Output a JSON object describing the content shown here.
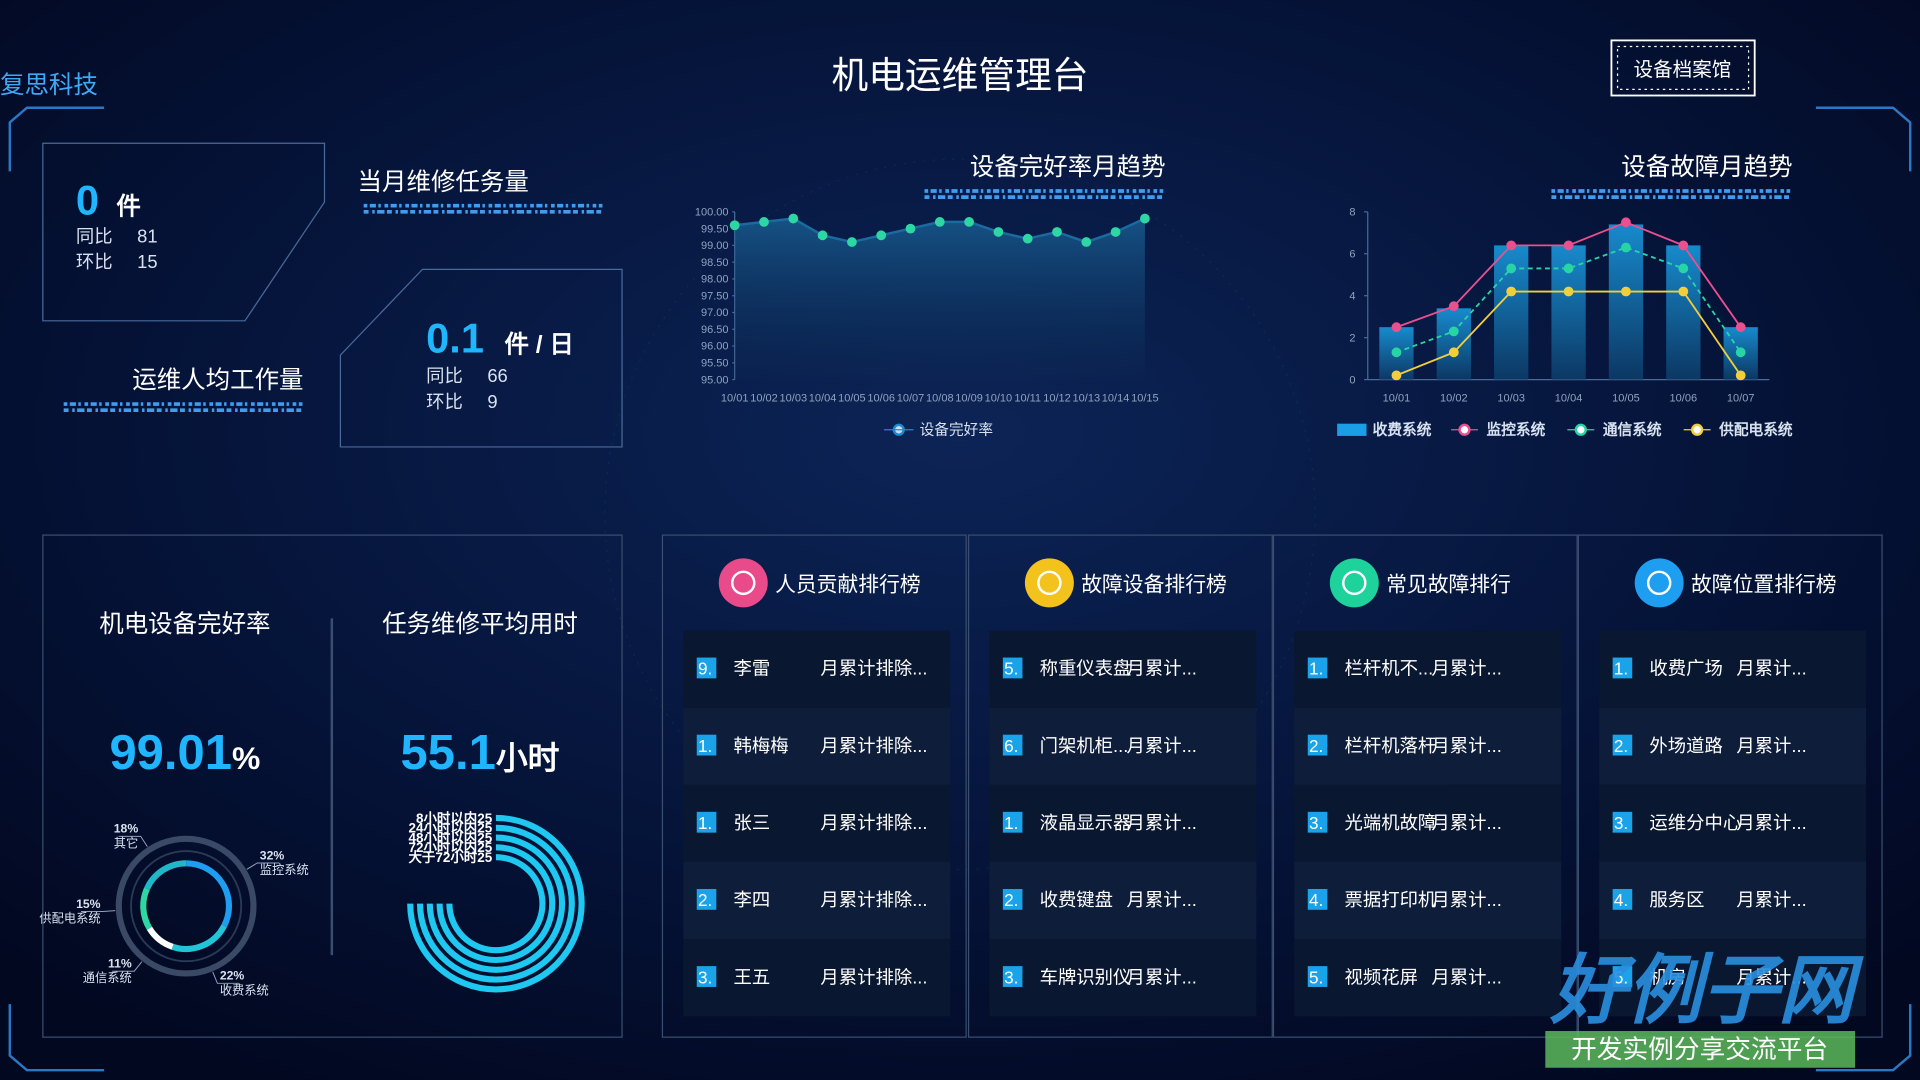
{
  "brand": "复思科技",
  "title": "机电运维管理台",
  "button": "设备档案馆",
  "stats": [
    {
      "value": 0,
      "unit": "件",
      "yoy_label": "同比",
      "yoy": 81,
      "mom_label": "环比",
      "mom": 15,
      "caption": "当月维修任务量"
    },
    {
      "value": 0.1,
      "unit": "件 / 日",
      "yoy_label": "同比",
      "yoy": 66,
      "mom_label": "环比",
      "mom": 9,
      "caption": "运维人均工作量"
    }
  ],
  "chart_data": [
    {
      "type": "line",
      "title": "设备完好率月趋势",
      "categories": [
        "10/01",
        "10/02",
        "10/03",
        "10/04",
        "10/05",
        "10/06",
        "10/07",
        "10/08",
        "10/09",
        "10/10",
        "10/11",
        "10/12",
        "10/13",
        "10/14",
        "10/15"
      ],
      "series": [
        {
          "name": "设备完好率",
          "color": "#2ed6a3",
          "values": [
            99.6,
            99.7,
            99.8,
            99.3,
            99.1,
            99.3,
            99.5,
            99.7,
            99.7,
            99.4,
            99.2,
            99.4,
            99.1,
            99.4,
            99.8
          ]
        }
      ],
      "ylim": [
        95,
        100
      ],
      "yticks": [
        {
          "value": 95,
          "label": "95.00"
        },
        {
          "value": 95.5,
          "label": "95.50"
        },
        {
          "value": 96,
          "label": "96.00"
        },
        {
          "value": 96.5,
          "label": "96.50"
        },
        {
          "value": 97,
          "label": "97.00"
        },
        {
          "value": 97.5,
          "label": "97.50"
        },
        {
          "value": 98,
          "label": "98.00"
        },
        {
          "value": 98.5,
          "label": "98.50"
        },
        {
          "value": 99,
          "label": "99.00"
        },
        {
          "value": 99.5,
          "label": "99.50"
        },
        {
          "value": 100,
          "label": "100.00"
        }
      ]
    },
    {
      "type": "combo",
      "title": "设备故障月趋势",
      "categories": [
        "10/01",
        "10/02",
        "10/03",
        "10/04",
        "10/05",
        "10/06",
        "10/07"
      ],
      "series": [
        {
          "name": "收费系统",
          "type": "bar",
          "color": "#1a9fe6",
          "values": [
            2.5,
            3.4,
            6.4,
            6.4,
            7.4,
            6.4,
            2.5
          ]
        },
        {
          "name": "监控系统",
          "type": "line",
          "color": "#ea4f8e",
          "values": [
            2.5,
            3.5,
            6.4,
            6.4,
            7.5,
            6.4,
            2.5
          ]
        },
        {
          "name": "通信系统",
          "type": "line",
          "dashed": true,
          "color": "#27d4a6",
          "values": [
            1.3,
            2.3,
            5.3,
            5.3,
            6.3,
            5.3,
            1.3
          ]
        },
        {
          "name": "供配电系统",
          "type": "line",
          "color": "#f2cf3a",
          "values": [
            0.2,
            1.3,
            4.2,
            4.2,
            4.2,
            4.2,
            0.2
          ]
        }
      ],
      "ylim": [
        0,
        8
      ],
      "yticks": [
        0,
        2,
        4,
        6,
        8
      ]
    },
    {
      "type": "pie",
      "categories": [
        "监控系统",
        "收费系统",
        "通信系统",
        "供配电系统",
        "其它"
      ],
      "values": [
        32,
        22,
        11,
        15,
        18
      ],
      "value_labels": [
        "32%",
        "22%",
        "11%",
        "15%",
        "18%"
      ],
      "colors": [
        "#1e9ef0",
        "#23c4d8",
        "#ffffff",
        "#2ed6a3",
        "#1fb8c9"
      ]
    },
    {
      "type": "radial_bar",
      "categories": [
        "8小时以内",
        "24小时以内",
        "48小时以内",
        "72小时以内",
        "大于72小时"
      ],
      "values": [
        25,
        25,
        25,
        25,
        25
      ],
      "color": "#1ec8f0"
    }
  ],
  "kpis": [
    {
      "title": "机电设备完好率",
      "value": 99.01,
      "unit": "%"
    },
    {
      "title": "任务维修平均用时",
      "value": 55.1,
      "unit": "小时"
    }
  ],
  "rankings": [
    {
      "title": "人员贡献排行榜",
      "color": "#e94a8a",
      "rows": [
        {
          "rank": "9.",
          "name": "李雷",
          "desc": "月累计排除..."
        },
        {
          "rank": "1.",
          "name": "韩梅梅",
          "desc": "月累计排除..."
        },
        {
          "rank": "1.",
          "name": "张三",
          "desc": "月累计排除..."
        },
        {
          "rank": "2.",
          "name": "李四",
          "desc": "月累计排除..."
        },
        {
          "rank": "3.",
          "name": "王五",
          "desc": "月累计排除..."
        }
      ]
    },
    {
      "title": "故障设备排行榜",
      "color": "#f3c21c",
      "rows": [
        {
          "rank": "5.",
          "name": "称重仪表盘",
          "desc": "月累计..."
        },
        {
          "rank": "6.",
          "name": "门架机柜...",
          "desc": "月累计..."
        },
        {
          "rank": "1.",
          "name": "液晶显示器",
          "desc": "月累计..."
        },
        {
          "rank": "2.",
          "name": "收费键盘",
          "desc": "月累计..."
        },
        {
          "rank": "3.",
          "name": "车牌识别仪",
          "desc": "月累计..."
        }
      ]
    },
    {
      "title": "常见故障排行",
      "color": "#1dd39b",
      "rows": [
        {
          "rank": "1.",
          "name": "栏杆机不...",
          "desc": "月累计..."
        },
        {
          "rank": "2.",
          "name": "栏杆机落杆",
          "desc": "月累计..."
        },
        {
          "rank": "3.",
          "name": "光端机故障",
          "desc": "月累计..."
        },
        {
          "rank": "4.",
          "name": "票据打印机",
          "desc": "月累计..."
        },
        {
          "rank": "5.",
          "name": "视频花屏",
          "desc": "月累计..."
        }
      ]
    },
    {
      "title": "故障位置排行榜",
      "color": "#1e9ef0",
      "rows": [
        {
          "rank": "1.",
          "name": "收费广场",
          "desc": "月累计..."
        },
        {
          "rank": "2.",
          "name": "外场道路",
          "desc": "月累计..."
        },
        {
          "rank": "3.",
          "name": "运维分中心",
          "desc": "月累计..."
        },
        {
          "rank": "4.",
          "name": "服务区",
          "desc": "月累计..."
        },
        {
          "rank": "5.",
          "name": "机房",
          "desc": "月累计..."
        }
      ]
    }
  ],
  "watermark": {
    "title": "好例子网",
    "subtitle": "开发实例分享交流平台"
  }
}
